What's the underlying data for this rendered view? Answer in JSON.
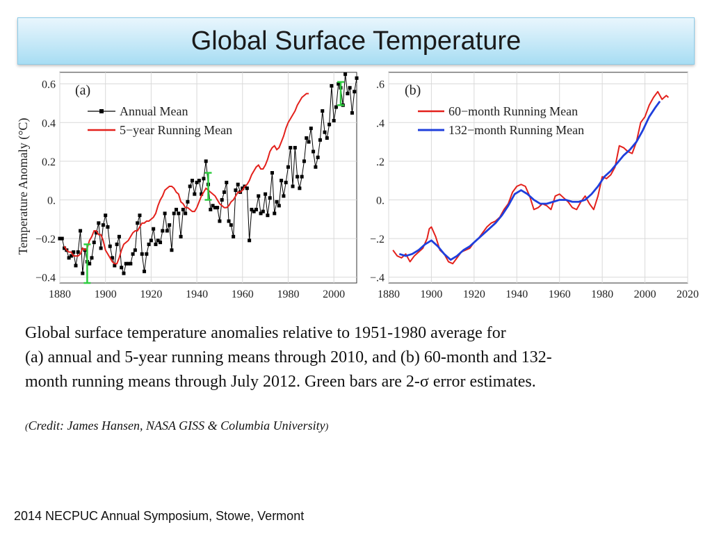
{
  "slide": {
    "title": "Global Surface Temperature",
    "caption_line1": "Global surface temperature anomalies relative to 1951-1980 average for",
    "caption_line2": "(a) annual and 5-year running means through 2010, and (b) 60-month and 132-",
    "caption_line3": "month running means through July 2012.  Green bars are 2-σ error estimates.",
    "credit_open": "(",
    "credit_text": "Credit: James Hansen, NASA GISS & Columbia University",
    "credit_close": ")",
    "footer": "2014 NECPUC Annual Symposium, Stowe, Vermont"
  },
  "colors": {
    "annual": "#000000",
    "running": "#e3201b",
    "long": "#1f3fdc",
    "error": "#2ecc40"
  },
  "chart_data": [
    {
      "type": "line",
      "panel_label": "(a)",
      "ylabel": "Temperature Anomaly (°C)",
      "xlim": [
        1880,
        2010
      ],
      "ylim": [
        -0.43,
        0.66
      ],
      "x_ticks": [
        "1880",
        "1900",
        "1920",
        "1940",
        "1960",
        "1980",
        "2000"
      ],
      "y_ticks": [
        "0.6",
        "0.4",
        "0.2",
        "0.",
        "−0.2",
        "−0.4"
      ],
      "legend": [
        "Annual Mean",
        "5−year Running Mean"
      ],
      "annual_start_year": 1880,
      "annual": [
        -0.2,
        -0.2,
        -0.25,
        -0.26,
        -0.3,
        -0.29,
        -0.27,
        -0.34,
        -0.27,
        -0.16,
        -0.38,
        -0.26,
        -0.32,
        -0.33,
        -0.3,
        -0.22,
        -0.17,
        -0.12,
        -0.25,
        -0.13,
        -0.08,
        -0.14,
        -0.24,
        -0.3,
        -0.34,
        -0.23,
        -0.19,
        -0.35,
        -0.38,
        -0.33,
        -0.33,
        -0.33,
        -0.28,
        -0.26,
        -0.12,
        -0.08,
        -0.28,
        -0.37,
        -0.28,
        -0.23,
        -0.21,
        -0.15,
        -0.23,
        -0.21,
        -0.22,
        -0.16,
        -0.07,
        -0.16,
        -0.13,
        -0.26,
        -0.07,
        -0.05,
        -0.07,
        -0.19,
        -0.05,
        -0.07,
        -0.01,
        0.07,
        0.1,
        0.03,
        0.09,
        0.1,
        0.03,
        0.11,
        0.2,
        0.08,
        -0.05,
        -0.03,
        -0.04,
        -0.04,
        -0.11,
        0.0,
        0.04,
        0.09,
        -0.11,
        -0.13,
        -0.19,
        0.05,
        0.08,
        0.04,
        0.06,
        0.07,
        0.06,
        -0.21,
        -0.05,
        -0.06,
        -0.05,
        0.02,
        -0.07,
        -0.06,
        0.03,
        -0.08,
        0.01,
        0.14,
        -0.07,
        -0.01,
        -0.03,
        0.1,
        0.02,
        0.09,
        0.17,
        0.27,
        0.07,
        0.27,
        0.12,
        0.06,
        0.12,
        0.2,
        0.32,
        0.3,
        0.37,
        0.25,
        0.17,
        0.22,
        0.31,
        0.46,
        0.35,
        0.32,
        0.39,
        0.59,
        0.41,
        0.48,
        0.6,
        0.58,
        0.49,
        0.65,
        0.55,
        0.58,
        0.45,
        0.56,
        0.63
      ],
      "running_start_year": 1882,
      "running": [
        -0.24,
        -0.26,
        -0.27,
        -0.27,
        -0.29,
        -0.29,
        -0.29,
        -0.28,
        -0.25,
        -0.26,
        -0.25,
        -0.21,
        -0.19,
        -0.16,
        -0.16,
        -0.18,
        -0.18,
        -0.21,
        -0.26,
        -0.28,
        -0.3,
        -0.32,
        -0.33,
        -0.33,
        -0.3,
        -0.26,
        -0.23,
        -0.22,
        -0.21,
        -0.19,
        -0.17,
        -0.16,
        -0.16,
        -0.14,
        -0.12,
        -0.12,
        -0.11,
        -0.11,
        -0.1,
        -0.09,
        -0.07,
        -0.03,
        0.0,
        0.02,
        0.05,
        0.06,
        0.07,
        0.07,
        0.06,
        0.04,
        0.03,
        -0.01,
        -0.02,
        -0.04,
        -0.04,
        -0.05,
        -0.06,
        -0.06,
        -0.04,
        -0.01,
        0.02,
        0.04,
        0.06,
        0.05,
        0.04,
        0.03,
        0.02,
        0.0,
        -0.02,
        -0.03,
        -0.04,
        -0.04,
        -0.03,
        -0.01,
        0.0,
        0.02,
        0.04,
        0.04,
        0.05,
        0.07,
        0.08,
        0.1,
        0.13,
        0.15,
        0.17,
        0.18,
        0.16,
        0.16,
        0.18,
        0.21,
        0.25,
        0.27,
        0.28,
        0.26,
        0.27,
        0.3,
        0.33,
        0.37,
        0.4,
        0.42,
        0.44,
        0.46,
        0.49,
        0.51,
        0.53,
        0.54,
        0.55,
        0.55
      ],
      "error_bars": [
        {
          "year": 1892,
          "center": -0.33,
          "half": 0.1
        },
        {
          "year": 1945,
          "center": 0.07,
          "half": 0.07
        },
        {
          "year": 2003,
          "center": 0.55,
          "half": 0.06
        }
      ]
    },
    {
      "type": "line",
      "panel_label": "(b)",
      "xlim": [
        1880,
        2020
      ],
      "ylim": [
        -0.43,
        0.66
      ],
      "x_ticks": [
        "1880",
        "1900",
        "1920",
        "1940",
        "1960",
        "1980",
        "2000",
        "2020"
      ],
      "y_ticks": [
        ".6",
        ".4",
        ".2",
        "0.",
        "−.2",
        "−.4"
      ],
      "legend": [
        "60−month Running Mean",
        "132−month Running Mean"
      ],
      "series": [
        {
          "name": "60−month Running Mean",
          "points": [
            [
              1882,
              -0.26
            ],
            [
              1884,
              -0.29
            ],
            [
              1886,
              -0.3
            ],
            [
              1888,
              -0.28
            ],
            [
              1890,
              -0.32
            ],
            [
              1892,
              -0.29
            ],
            [
              1894,
              -0.27
            ],
            [
              1896,
              -0.25
            ],
            [
              1898,
              -0.2
            ],
            [
              1899,
              -0.15
            ],
            [
              1900,
              -0.14
            ],
            [
              1902,
              -0.19
            ],
            [
              1904,
              -0.26
            ],
            [
              1906,
              -0.28
            ],
            [
              1908,
              -0.32
            ],
            [
              1910,
              -0.33
            ],
            [
              1912,
              -0.3
            ],
            [
              1914,
              -0.27
            ],
            [
              1916,
              -0.26
            ],
            [
              1918,
              -0.25
            ],
            [
              1920,
              -0.22
            ],
            [
              1922,
              -0.2
            ],
            [
              1924,
              -0.17
            ],
            [
              1926,
              -0.14
            ],
            [
              1928,
              -0.12
            ],
            [
              1930,
              -0.11
            ],
            [
              1932,
              -0.09
            ],
            [
              1934,
              -0.05
            ],
            [
              1936,
              -0.02
            ],
            [
              1938,
              0.04
            ],
            [
              1940,
              0.07
            ],
            [
              1942,
              0.08
            ],
            [
              1944,
              0.07
            ],
            [
              1946,
              0.02
            ],
            [
              1948,
              -0.05
            ],
            [
              1950,
              -0.04
            ],
            [
              1952,
              -0.02
            ],
            [
              1954,
              -0.03
            ],
            [
              1956,
              -0.05
            ],
            [
              1958,
              0.02
            ],
            [
              1960,
              0.03
            ],
            [
              1962,
              0.01
            ],
            [
              1964,
              -0.01
            ],
            [
              1966,
              -0.04
            ],
            [
              1968,
              -0.05
            ],
            [
              1970,
              -0.01
            ],
            [
              1972,
              0.02
            ],
            [
              1974,
              -0.02
            ],
            [
              1976,
              -0.05
            ],
            [
              1978,
              0.02
            ],
            [
              1980,
              0.12
            ],
            [
              1982,
              0.11
            ],
            [
              1984,
              0.13
            ],
            [
              1986,
              0.17
            ],
            [
              1988,
              0.28
            ],
            [
              1990,
              0.27
            ],
            [
              1992,
              0.25
            ],
            [
              1994,
              0.24
            ],
            [
              1996,
              0.3
            ],
            [
              1998,
              0.4
            ],
            [
              2000,
              0.43
            ],
            [
              2002,
              0.49
            ],
            [
              2004,
              0.53
            ],
            [
              2006,
              0.56
            ],
            [
              2008,
              0.52
            ],
            [
              2010,
              0.54
            ],
            [
              2011,
              0.53
            ]
          ]
        },
        {
          "name": "132−month Running Mean",
          "points": [
            [
              1885,
              -0.28
            ],
            [
              1888,
              -0.29
            ],
            [
              1891,
              -0.28
            ],
            [
              1894,
              -0.26
            ],
            [
              1897,
              -0.23
            ],
            [
              1900,
              -0.21
            ],
            [
              1903,
              -0.24
            ],
            [
              1906,
              -0.28
            ],
            [
              1909,
              -0.31
            ],
            [
              1912,
              -0.29
            ],
            [
              1915,
              -0.26
            ],
            [
              1918,
              -0.24
            ],
            [
              1921,
              -0.21
            ],
            [
              1924,
              -0.18
            ],
            [
              1927,
              -0.15
            ],
            [
              1930,
              -0.12
            ],
            [
              1933,
              -0.08
            ],
            [
              1936,
              -0.03
            ],
            [
              1939,
              0.03
            ],
            [
              1942,
              0.05
            ],
            [
              1945,
              0.03
            ],
            [
              1948,
              0.0
            ],
            [
              1951,
              -0.02
            ],
            [
              1954,
              -0.02
            ],
            [
              1957,
              -0.01
            ],
            [
              1960,
              0.0
            ],
            [
              1963,
              0.0
            ],
            [
              1966,
              -0.01
            ],
            [
              1969,
              -0.01
            ],
            [
              1972,
              0.0
            ],
            [
              1975,
              0.03
            ],
            [
              1978,
              0.07
            ],
            [
              1981,
              0.12
            ],
            [
              1984,
              0.15
            ],
            [
              1987,
              0.19
            ],
            [
              1990,
              0.23
            ],
            [
              1993,
              0.26
            ],
            [
              1996,
              0.3
            ],
            [
              1999,
              0.36
            ],
            [
              2002,
              0.43
            ],
            [
              2005,
              0.48
            ],
            [
              2007,
              0.51
            ]
          ]
        }
      ]
    }
  ]
}
